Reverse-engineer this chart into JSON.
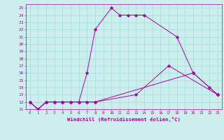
{
  "xlabel": "Windchill (Refroidissement éolien,°C)",
  "bg_color": "#cceeed",
  "grid_color": "#99dddd",
  "line_color": "#aa00aa",
  "xlim": [
    -0.5,
    23.5
  ],
  "ylim": [
    11,
    25.5
  ],
  "xticks": [
    0,
    1,
    2,
    3,
    4,
    5,
    6,
    7,
    8,
    9,
    10,
    11,
    12,
    13,
    14,
    15,
    16,
    17,
    18,
    19,
    20,
    21,
    22,
    23
  ],
  "yticks": [
    11,
    12,
    13,
    14,
    15,
    16,
    17,
    18,
    19,
    20,
    21,
    22,
    23,
    24,
    25
  ],
  "line1_x": [
    0,
    1,
    2,
    3,
    4,
    5,
    6,
    7,
    8,
    10,
    11,
    12,
    13,
    14,
    18,
    20,
    22,
    23
  ],
  "line1_y": [
    12,
    11,
    12,
    12,
    12,
    12,
    12,
    16,
    22,
    25,
    24,
    24,
    24,
    24,
    21,
    16,
    14,
    13
  ],
  "line2_x": [
    0,
    1,
    2,
    3,
    4,
    5,
    6,
    7,
    8,
    13,
    17,
    23
  ],
  "line2_y": [
    12,
    11,
    12,
    12,
    12,
    12,
    12,
    12,
    12,
    13,
    17,
    13
  ],
  "line3_x": [
    0,
    1,
    2,
    3,
    4,
    5,
    6,
    7,
    8,
    20,
    23
  ],
  "line3_y": [
    12,
    11,
    12,
    12,
    12,
    12,
    12,
    12,
    12,
    16,
    13
  ]
}
